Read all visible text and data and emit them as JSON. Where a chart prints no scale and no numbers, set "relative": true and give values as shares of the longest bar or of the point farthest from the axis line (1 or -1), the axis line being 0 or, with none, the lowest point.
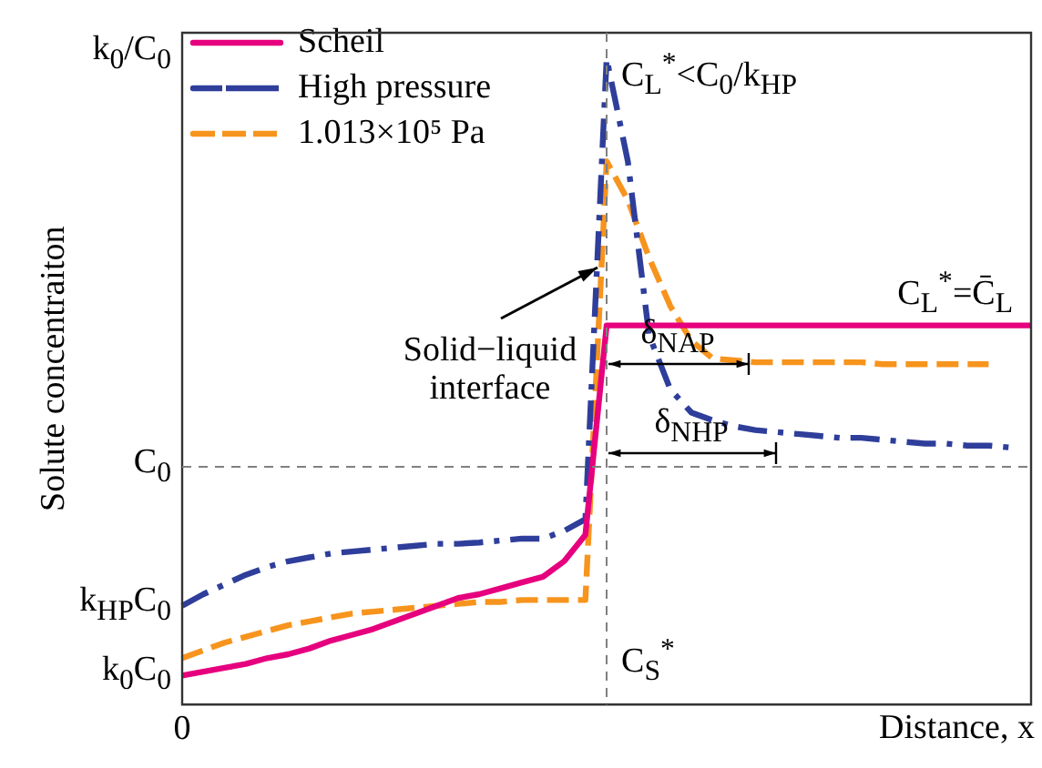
{
  "chart_data": {
    "type": "line",
    "relative": true,
    "ylabel": "Solute concentraiton",
    "xlabel": "Distance, x",
    "legend": "top left",
    "categories": [
      null,
      null,
      null,
      null,
      null,
      null,
      null,
      null,
      null,
      null,
      null,
      null,
      null,
      null,
      null,
      null,
      null,
      null,
      null,
      null,
      null,
      null,
      null,
      null,
      null,
      null,
      null,
      null,
      null,
      null,
      null,
      null,
      null,
      null,
      null,
      null,
      null,
      null,
      null,
      null,
      null
    ],
    "series": [
      {
        "name": "Scheil",
        "color": "#e6007e",
        "line_style": "solid",
        "values": [
          0.045,
          0.051,
          0.057,
          0.063,
          0.072,
          0.078,
          0.087,
          0.099,
          0.108,
          0.117,
          0.129,
          0.141,
          0.153,
          0.165,
          0.171,
          0.18,
          0.189,
          0.198,
          0.222,
          0.263,
          0.587,
          0.587,
          0.587,
          0.587,
          0.587,
          0.587,
          0.587,
          0.587,
          0.587,
          0.587,
          0.587,
          0.587,
          0.587,
          0.587,
          0.587,
          0.587,
          0.587,
          0.587,
          0.587,
          0.587,
          0.587
        ]
      },
      {
        "name": "High pressure",
        "color": "#2e3e9a",
        "line_style": "dashdot",
        "values": [
          0.153,
          0.171,
          0.186,
          0.201,
          0.213,
          0.222,
          0.228,
          0.234,
          0.237,
          0.24,
          0.243,
          0.246,
          0.249,
          0.249,
          0.251,
          0.254,
          0.257,
          0.257,
          0.269,
          0.287,
          1.0,
          0.841,
          0.572,
          0.488,
          0.452,
          0.44,
          0.431,
          0.425,
          0.422,
          0.419,
          0.416,
          0.413,
          0.413,
          0.41,
          0.407,
          0.404,
          0.404,
          0.401,
          0.401,
          0.398,
          null
        ]
      },
      {
        "name": "1.013×10⁵ Pa",
        "color": "#f7941d",
        "line_style": "dashed",
        "values": [
          0.072,
          0.084,
          0.096,
          0.105,
          0.114,
          0.123,
          0.129,
          0.135,
          0.141,
          0.144,
          0.147,
          0.15,
          0.153,
          0.156,
          0.159,
          0.159,
          0.162,
          0.162,
          0.162,
          0.162,
          0.841,
          0.781,
          0.692,
          0.617,
          0.563,
          0.536,
          0.533,
          0.53,
          0.53,
          0.53,
          0.53,
          0.53,
          0.53,
          0.527,
          0.527,
          0.527,
          0.527,
          0.527,
          0.527,
          null,
          null
        ]
      }
    ],
    "ref_lines": [
      {
        "axis": "x",
        "label": "Solid−liquid interface",
        "color": "#808080",
        "line_style": "dashed"
      },
      {
        "axis": "y",
        "value": 0.368,
        "label": "C$_{0}$",
        "color": "#808080",
        "line_style": "dashed"
      }
    ],
    "annotations": [
      "k$_{0}$/C$_{0}$",
      "k$_{HP}$C$_{0}$",
      "k$_{0}$C$_{0}$",
      "C$_{L}$$^{*}$<C$_{0}$/k$_{HP}$",
      "C$_{L}$$^{*}$=C̄$_{L}$",
      "C$_{S}$$^{*}$",
      "δ$_{NAP}$",
      "δ$_{NHP}$",
      "0"
    ]
  }
}
